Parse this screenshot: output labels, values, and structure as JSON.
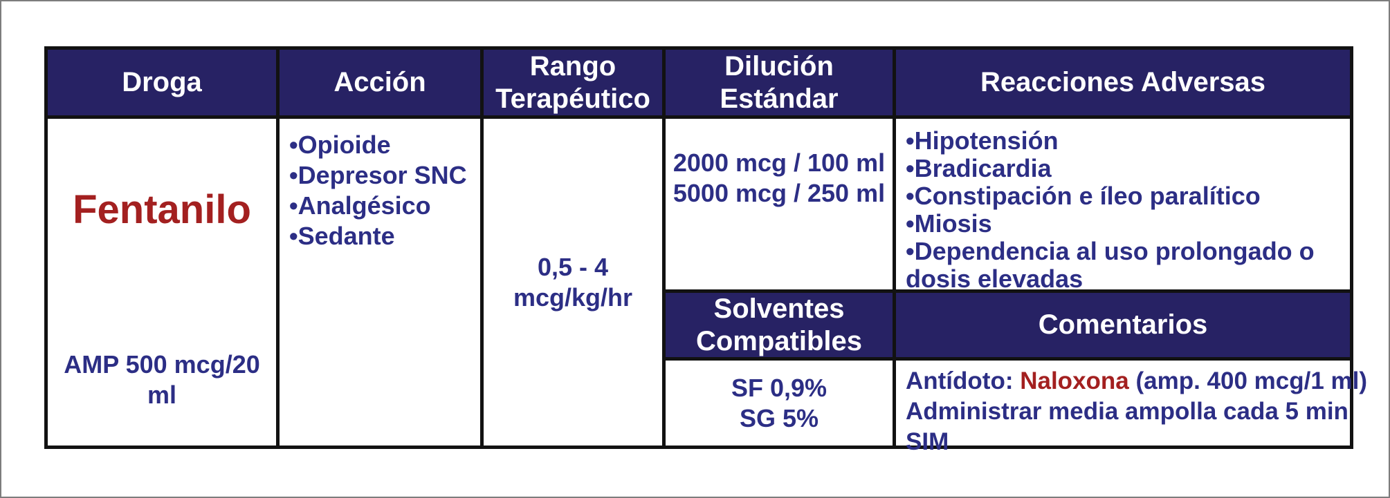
{
  "table": {
    "headers": {
      "droga": "Droga",
      "accion": "Acción",
      "rango": "Rango Terapéutico",
      "dilucion": "Dilución Estándar",
      "reacciones": "Reacciones Adversas",
      "solventes": "Solventes Compatibles",
      "comentarios": "Comentarios"
    },
    "droga": {
      "name": "Fentanilo",
      "presentation": "AMP 500 mcg/20 ml"
    },
    "accion": {
      "items": [
        "•Opioide",
        "•Depresor SNC",
        "•Analgésico",
        "•Sedante"
      ]
    },
    "rango": {
      "line1": "0,5 - 4",
      "line2": "mcg/kg/hr"
    },
    "dilucion": {
      "lines": [
        "2000 mcg / 100 ml",
        "5000 mcg / 250 ml"
      ]
    },
    "reacciones": {
      "items": [
        "•Hipotensión",
        "•Bradicardia",
        "•Constipación e íleo paralítico",
        "•Miosis",
        "•Dependencia al uso prolongado o dosis elevadas"
      ]
    },
    "solventes": {
      "lines": [
        "SF 0,9%",
        "SG 5%"
      ]
    },
    "comentarios": {
      "antidote_label": "Antídoto: ",
      "antidote_drug": "Naloxona",
      "antidote_rest": " (amp. 400 mcg/1 ml)",
      "line2": "Administrar media ampolla cada 5 min",
      "line3": "SIM"
    }
  },
  "colors": {
    "header_bg": "#272264",
    "header_text": "#ffffff",
    "body_text": "#2c2e85",
    "accent_red": "#a32020",
    "border_black": "#121212"
  }
}
